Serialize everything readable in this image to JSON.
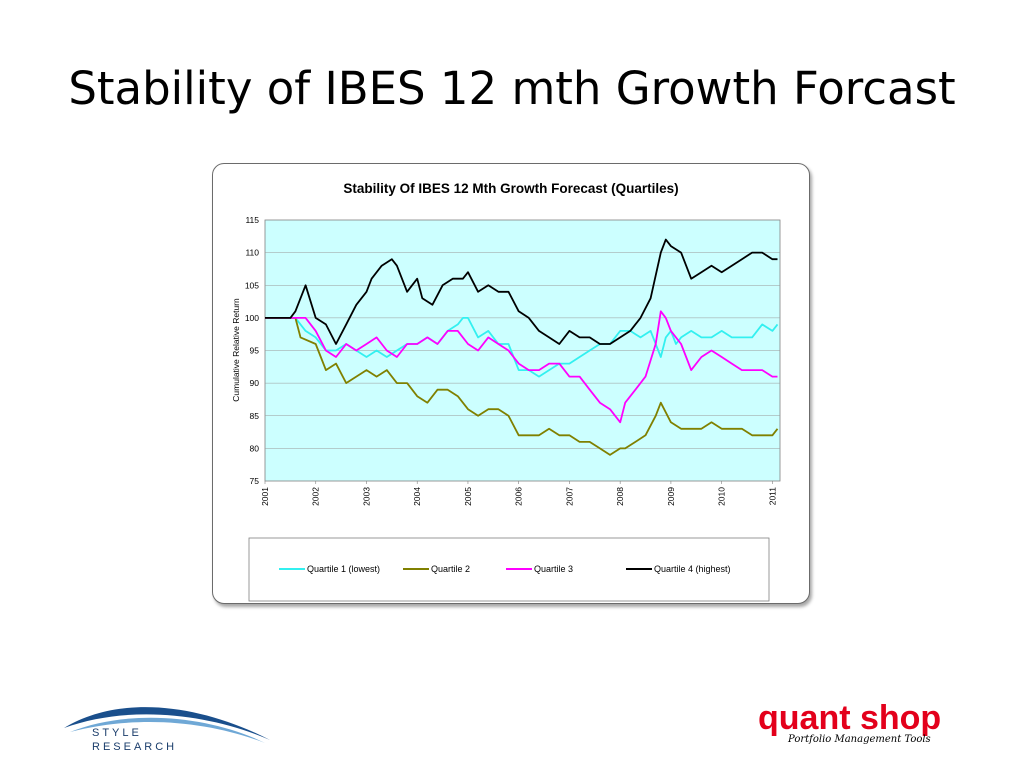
{
  "slide": {
    "title": "Stability of IBES 12 mth Growth Forcast"
  },
  "logos": {
    "style_research_line1": "STYLE",
    "style_research_line2": "RESEARCH",
    "quant_shop_name": "quant shop",
    "quant_shop_tagline": "Portfolio Management Tools"
  },
  "colors": {
    "plot_background": "#ccffff",
    "q1": "#33f0f0",
    "q2": "#808000",
    "q3": "#ff00ff",
    "q4": "#000000",
    "quant_red": "#e3001b",
    "style_blue": "#1a4f8c"
  },
  "chart_data": {
    "type": "line",
    "title": "Stability Of IBES 12 Mth Growth Forecast (Quartiles)",
    "xlabel": "",
    "ylabel": "Cumulative Relative Return",
    "xlim": [
      2001,
      2011.15
    ],
    "ylim": [
      75,
      115
    ],
    "x_ticks": [
      "2001",
      "2002",
      "2003",
      "2004",
      "2005",
      "2006",
      "2007",
      "2008",
      "2009",
      "2010",
      "2011"
    ],
    "y_ticks": [
      75,
      80,
      85,
      90,
      95,
      100,
      105,
      110,
      115
    ],
    "grid": "horizontal",
    "legend": "bottom",
    "series": [
      {
        "name": "Quartile 1 (lowest)",
        "color": "#33f0f0",
        "x": [
          2001.0,
          2001.6,
          2001.8,
          2002.0,
          2002.2,
          2002.4,
          2002.6,
          2002.8,
          2003.0,
          2003.2,
          2003.4,
          2003.6,
          2003.8,
          2004.0,
          2004.2,
          2004.4,
          2004.6,
          2004.8,
          2004.9,
          2005.0,
          2005.2,
          2005.4,
          2005.6,
          2005.8,
          2006.0,
          2006.2,
          2006.4,
          2006.6,
          2006.8,
          2007.0,
          2007.2,
          2007.4,
          2007.6,
          2007.8,
          2008.0,
          2008.2,
          2008.4,
          2008.6,
          2008.7,
          2008.8,
          2008.9,
          2009.0,
          2009.1,
          2009.2,
          2009.4,
          2009.6,
          2009.8,
          2010.0,
          2010.2,
          2010.4,
          2010.6,
          2010.8,
          2011.0,
          2011.1
        ],
        "y": [
          100,
          100,
          98,
          97,
          95,
          95,
          96,
          95,
          94,
          95,
          94,
          95,
          96,
          96,
          97,
          96,
          98,
          99,
          100,
          100,
          97,
          98,
          96,
          96,
          92,
          92,
          91,
          92,
          93,
          93,
          94,
          95,
          96,
          96,
          98,
          98,
          97,
          98,
          96,
          94,
          97,
          98,
          96,
          97,
          98,
          97,
          97,
          98,
          97,
          97,
          97,
          99,
          98,
          99
        ]
      },
      {
        "name": "Quartile 2",
        "color": "#808000",
        "x": [
          2001.0,
          2001.6,
          2001.7,
          2002.0,
          2002.1,
          2002.2,
          2002.4,
          2002.6,
          2002.8,
          2003.0,
          2003.2,
          2003.4,
          2003.6,
          2003.8,
          2004.0,
          2004.2,
          2004.4,
          2004.6,
          2004.8,
          2005.0,
          2005.2,
          2005.4,
          2005.6,
          2005.8,
          2006.0,
          2006.2,
          2006.4,
          2006.6,
          2006.8,
          2007.0,
          2007.2,
          2007.4,
          2007.6,
          2007.8,
          2008.0,
          2008.1,
          2008.3,
          2008.5,
          2008.7,
          2008.8,
          2009.0,
          2009.2,
          2009.4,
          2009.6,
          2009.8,
          2010.0,
          2010.2,
          2010.4,
          2010.6,
          2010.8,
          2011.0,
          2011.1
        ],
        "y": [
          100,
          100,
          97,
          96,
          94,
          92,
          93,
          90,
          91,
          92,
          91,
          92,
          90,
          90,
          88,
          87,
          89,
          89,
          88,
          86,
          85,
          86,
          86,
          85,
          82,
          82,
          82,
          83,
          82,
          82,
          81,
          81,
          80,
          79,
          80,
          80,
          81,
          82,
          85,
          87,
          84,
          83,
          83,
          83,
          84,
          83,
          83,
          83,
          82,
          82,
          82,
          83
        ]
      },
      {
        "name": "Quartile 3",
        "color": "#ff00ff",
        "x": [
          2001.0,
          2001.6,
          2001.8,
          2002.0,
          2002.2,
          2002.4,
          2002.6,
          2002.8,
          2003.0,
          2003.2,
          2003.4,
          2003.6,
          2003.8,
          2004.0,
          2004.2,
          2004.4,
          2004.6,
          2004.8,
          2005.0,
          2005.2,
          2005.4,
          2005.6,
          2005.8,
          2006.0,
          2006.2,
          2006.4,
          2006.6,
          2006.8,
          2007.0,
          2007.2,
          2007.4,
          2007.6,
          2007.8,
          2008.0,
          2008.1,
          2008.3,
          2008.5,
          2008.7,
          2008.8,
          2008.9,
          2009.0,
          2009.2,
          2009.4,
          2009.6,
          2009.8,
          2010.0,
          2010.2,
          2010.4,
          2010.6,
          2010.8,
          2011.0,
          2011.1
        ],
        "y": [
          100,
          100,
          100,
          98,
          95,
          94,
          96,
          95,
          96,
          97,
          95,
          94,
          96,
          96,
          97,
          96,
          98,
          98,
          96,
          95,
          97,
          96,
          95,
          93,
          92,
          92,
          93,
          93,
          91,
          91,
          89,
          87,
          86,
          84,
          87,
          89,
          91,
          96,
          101,
          100,
          98,
          96,
          92,
          94,
          95,
          94,
          93,
          92,
          92,
          92,
          91,
          91
        ]
      },
      {
        "name": "Quartile 4 (highest)",
        "color": "#000000",
        "x": [
          2001.0,
          2001.5,
          2001.6,
          2001.8,
          2002.0,
          2002.2,
          2002.4,
          2002.6,
          2002.8,
          2003.0,
          2003.1,
          2003.3,
          2003.5,
          2003.6,
          2003.8,
          2004.0,
          2004.1,
          2004.3,
          2004.5,
          2004.7,
          2004.9,
          2005.0,
          2005.2,
          2005.4,
          2005.6,
          2005.8,
          2006.0,
          2006.2,
          2006.4,
          2006.6,
          2006.8,
          2007.0,
          2007.2,
          2007.4,
          2007.6,
          2007.8,
          2008.0,
          2008.2,
          2008.4,
          2008.6,
          2008.8,
          2008.9,
          2009.0,
          2009.2,
          2009.4,
          2009.6,
          2009.8,
          2010.0,
          2010.2,
          2010.4,
          2010.6,
          2010.8,
          2011.0,
          2011.1
        ],
        "y": [
          100,
          100,
          101,
          105,
          100,
          99,
          96,
          99,
          102,
          104,
          106,
          108,
          109,
          108,
          104,
          106,
          103,
          102,
          105,
          106,
          106,
          107,
          104,
          105,
          104,
          104,
          101,
          100,
          98,
          97,
          96,
          98,
          97,
          97,
          96,
          96,
          97,
          98,
          100,
          103,
          110,
          112,
          111,
          110,
          106,
          107,
          108,
          107,
          108,
          109,
          110,
          110,
          109,
          109
        ]
      }
    ]
  }
}
